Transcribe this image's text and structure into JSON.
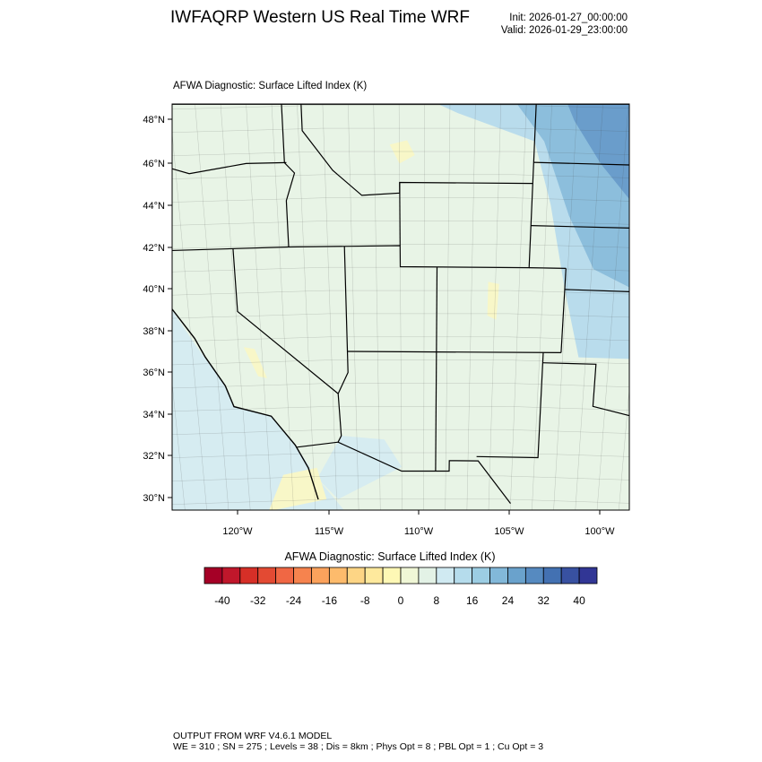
{
  "header": {
    "title": "IWFAQRP Western US Real Time WRF",
    "init": "Init: 2026-01-27_00:00:00",
    "valid": "Valid: 2026-01-29_23:00:00"
  },
  "map": {
    "subtitle": "AFWA Diagnostic: Surface Lifted Index   (K)",
    "lat_labels": [
      "48°N",
      "46°N",
      "44°N",
      "42°N",
      "40°N",
      "38°N",
      "36°N",
      "34°N",
      "32°N",
      "30°N"
    ],
    "lat_values": [
      48,
      46,
      44,
      42,
      40,
      38,
      36,
      34,
      32,
      30
    ],
    "lon_labels": [
      "120°W",
      "115°W",
      "110°W",
      "105°W",
      "100°W"
    ],
    "lon_values": [
      -120,
      -115,
      -110,
      -105,
      -100
    ],
    "field_colors": {
      "base": "#e8f4e6",
      "ocean": "#d6ecf1",
      "plains_light": "#b9dcec",
      "plains_mid": "#8cbedc",
      "plains_dark": "#6a9dcb",
      "yellow": "#f8f7c8"
    }
  },
  "colorbar": {
    "title": "AFWA Diagnostic: Surface Lifted Index  (K)",
    "levels": [
      -40,
      -36,
      -32,
      -28,
      -24,
      -20,
      -16,
      -12,
      -8,
      -4,
      0,
      4,
      8,
      12,
      16,
      20,
      24,
      28,
      32,
      36,
      40
    ],
    "tick_labels": [
      "-40",
      "-32",
      "-24",
      "-16",
      "-8",
      "0",
      "8",
      "16",
      "24",
      "32",
      "40"
    ],
    "tick_values": [
      -40,
      -32,
      -24,
      -16,
      -8,
      0,
      8,
      16,
      24,
      32,
      40
    ],
    "colors": [
      "#a50026",
      "#c0172b",
      "#d62f27",
      "#e34a33",
      "#f06744",
      "#f6834e",
      "#fba25c",
      "#fdbb6c",
      "#fdd585",
      "#fee99d",
      "#fef8b5",
      "#f0f7d6",
      "#e3f2e6",
      "#d0eaf2",
      "#b5dcec",
      "#9ccde3",
      "#82b8d9",
      "#6aa2cc",
      "#568ac0",
      "#4371b2",
      "#3851a1",
      "#313695"
    ]
  },
  "footer": {
    "line1": "OUTPUT FROM WRF V4.6.1 MODEL",
    "line2": "WE = 310 ; SN = 275 ; Levels = 38 ; Dis = 8km ; Phys Opt = 8 ; PBL Opt = 1 ; Cu Opt = 3"
  }
}
